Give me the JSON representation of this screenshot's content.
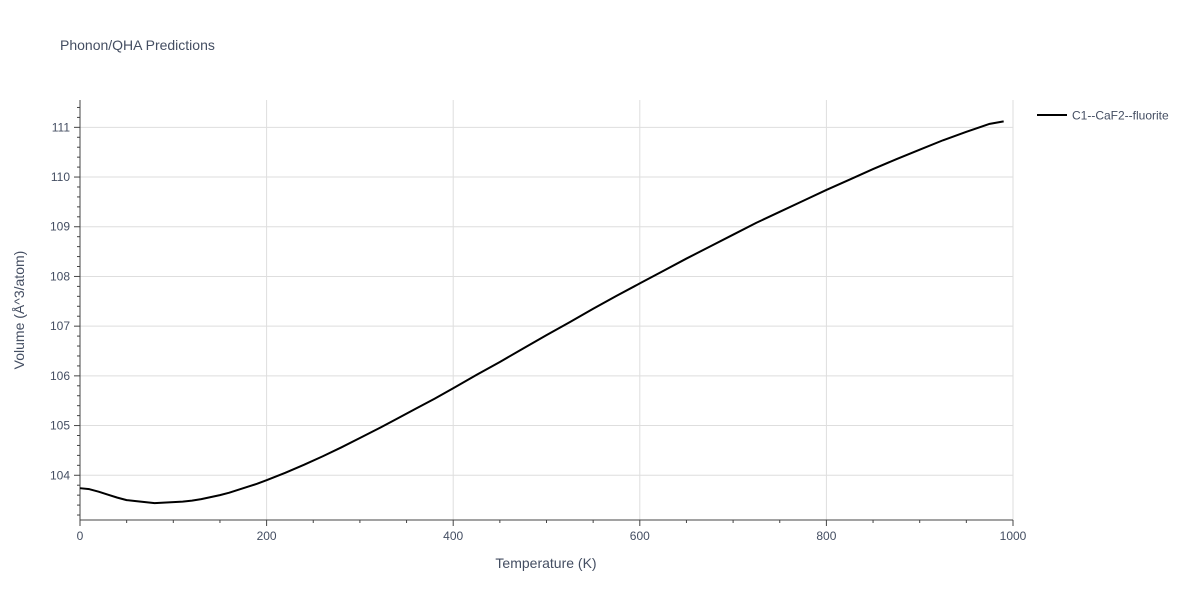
{
  "chart_data": {
    "type": "line",
    "title": "Phonon/QHA Predictions",
    "xlabel": "Temperature (K)",
    "ylabel": "Volume (Å^3/atom)",
    "xlim": [
      0,
      1000
    ],
    "ylim": [
      103.1,
      111.55
    ],
    "xticks": [
      0,
      200,
      400,
      600,
      800,
      1000
    ],
    "xtick_labels": [
      "0",
      "200",
      "400",
      "600",
      "800",
      "1000"
    ],
    "yticks": [
      104,
      105,
      106,
      107,
      108,
      109,
      110,
      111
    ],
    "ytick_labels": [
      "104",
      "105",
      "106",
      "107",
      "108",
      "109",
      "110",
      "111"
    ],
    "grid": true,
    "legend_position": "top-right outside",
    "series": [
      {
        "name": "C1--CaF2--fluorite",
        "color": "#000000",
        "x": [
          0,
          10,
          20,
          30,
          40,
          50,
          60,
          70,
          80,
          90,
          100,
          110,
          120,
          130,
          140,
          150,
          160,
          170,
          180,
          190,
          200,
          220,
          240,
          260,
          280,
          300,
          320,
          340,
          360,
          380,
          400,
          425,
          450,
          475,
          500,
          525,
          550,
          575,
          600,
          625,
          650,
          675,
          700,
          725,
          750,
          775,
          800,
          825,
          850,
          875,
          900,
          925,
          950,
          975,
          990
        ],
        "y": [
          103.74,
          103.72,
          103.67,
          103.61,
          103.55,
          103.5,
          103.48,
          103.46,
          103.44,
          103.45,
          103.46,
          103.47,
          103.49,
          103.52,
          103.56,
          103.6,
          103.65,
          103.71,
          103.77,
          103.83,
          103.9,
          104.05,
          104.21,
          104.38,
          104.56,
          104.75,
          104.94,
          105.14,
          105.34,
          105.54,
          105.75,
          106.02,
          106.28,
          106.55,
          106.82,
          107.08,
          107.35,
          107.61,
          107.86,
          108.11,
          108.36,
          108.6,
          108.84,
          109.08,
          109.3,
          109.52,
          109.74,
          109.95,
          110.16,
          110.36,
          110.55,
          110.74,
          110.91,
          111.07,
          111.12
        ]
      }
    ]
  }
}
